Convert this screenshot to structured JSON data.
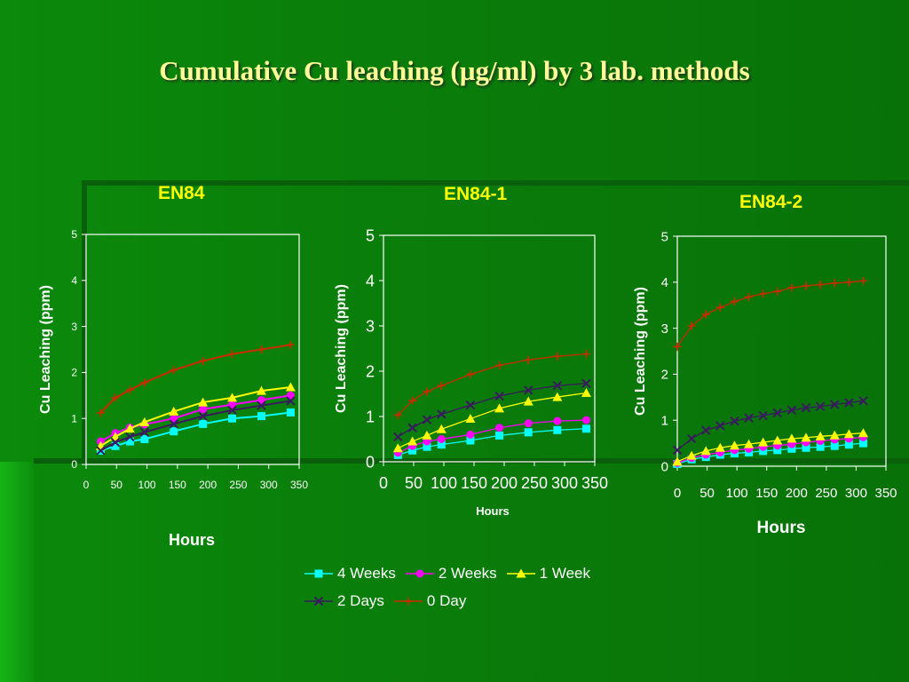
{
  "slide": {
    "title": "Cumulative Cu leaching (µg/ml) by 3 lab. methods"
  },
  "colors": {
    "4 Weeks": "#00ffff",
    "2 Weeks": "#ff00ff",
    "1 Week": "#ffff00",
    "2 Days": "#3a1a5e",
    "0 Day": "#cc2a00"
  },
  "chart_data": [
    {
      "type": "line",
      "title": "EN84",
      "xlabel": "Hours",
      "ylabel": "Cu Leaching (ppm)",
      "xlim": [
        0,
        350
      ],
      "ylim": [
        0,
        5
      ],
      "xticks": [
        0,
        50,
        100,
        150,
        200,
        250,
        300,
        350
      ],
      "yticks": [
        0,
        1,
        2,
        3,
        4,
        5
      ],
      "x": [
        24,
        48,
        72,
        96,
        144,
        192,
        240,
        288,
        336
      ],
      "series": [
        {
          "name": "4 Weeks",
          "marker": "square",
          "values": [
            0.3,
            0.4,
            0.5,
            0.55,
            0.72,
            0.88,
            1.0,
            1.05,
            1.13
          ]
        },
        {
          "name": "2 Weeks",
          "marker": "circle",
          "values": [
            0.5,
            0.68,
            0.8,
            0.87,
            1.0,
            1.2,
            1.3,
            1.4,
            1.5
          ]
        },
        {
          "name": "1 Week",
          "marker": "triangle",
          "values": [
            0.4,
            0.6,
            0.78,
            0.92,
            1.15,
            1.35,
            1.45,
            1.6,
            1.68
          ]
        },
        {
          "name": "2 Days",
          "marker": "x",
          "values": [
            0.3,
            0.48,
            0.6,
            0.7,
            0.88,
            1.05,
            1.18,
            1.28,
            1.38
          ]
        },
        {
          "name": "0 Day",
          "marker": "plus",
          "values": [
            1.12,
            1.45,
            1.62,
            1.78,
            2.05,
            2.25,
            2.4,
            2.5,
            2.6
          ]
        }
      ]
    },
    {
      "type": "line",
      "title": "EN84-1",
      "xlabel": "Hours",
      "ylabel": "Cu Leaching (ppm)",
      "xlim": [
        0,
        350
      ],
      "ylim": [
        0,
        5
      ],
      "xticks": [
        0,
        50,
        100,
        150,
        200,
        250,
        300,
        350
      ],
      "yticks": [
        0,
        1,
        2,
        3,
        4,
        5
      ],
      "x": [
        24,
        48,
        72,
        96,
        144,
        192,
        240,
        288,
        336
      ],
      "series": [
        {
          "name": "4 Weeks",
          "marker": "square",
          "values": [
            0.15,
            0.25,
            0.33,
            0.38,
            0.47,
            0.58,
            0.65,
            0.7,
            0.73
          ]
        },
        {
          "name": "2 Weeks",
          "marker": "circle",
          "values": [
            0.2,
            0.35,
            0.45,
            0.5,
            0.6,
            0.75,
            0.85,
            0.9,
            0.92
          ]
        },
        {
          "name": "1 Week",
          "marker": "triangle",
          "values": [
            0.3,
            0.45,
            0.58,
            0.72,
            0.95,
            1.18,
            1.33,
            1.43,
            1.52
          ]
        },
        {
          "name": "2 Days",
          "marker": "x",
          "values": [
            0.55,
            0.75,
            0.93,
            1.05,
            1.25,
            1.45,
            1.58,
            1.68,
            1.73
          ]
        },
        {
          "name": "0 Day",
          "marker": "plus",
          "values": [
            1.03,
            1.35,
            1.55,
            1.68,
            1.93,
            2.13,
            2.25,
            2.33,
            2.38
          ]
        }
      ]
    },
    {
      "type": "line",
      "title": "EN84-2",
      "xlabel": "Hours",
      "ylabel": "Cu Leaching (ppm)",
      "xlim": [
        0,
        350
      ],
      "ylim": [
        0,
        5
      ],
      "xticks": [
        0,
        50,
        100,
        150,
        200,
        250,
        300,
        350
      ],
      "yticks": [
        0,
        1,
        2,
        3,
        4,
        5
      ],
      "x": [
        0,
        24,
        48,
        72,
        96,
        120,
        144,
        168,
        192,
        216,
        240,
        264,
        288,
        312
      ],
      "series": [
        {
          "name": "4 Weeks",
          "marker": "square",
          "values": [
            0.05,
            0.15,
            0.2,
            0.25,
            0.28,
            0.3,
            0.33,
            0.35,
            0.38,
            0.4,
            0.42,
            0.44,
            0.47,
            0.5
          ]
        },
        {
          "name": "2 Weeks",
          "marker": "circle",
          "values": [
            0.07,
            0.18,
            0.25,
            0.3,
            0.35,
            0.38,
            0.42,
            0.45,
            0.48,
            0.52,
            0.55,
            0.58,
            0.6,
            0.63
          ]
        },
        {
          "name": "1 Week",
          "marker": "triangle",
          "values": [
            0.1,
            0.23,
            0.33,
            0.4,
            0.45,
            0.48,
            0.52,
            0.56,
            0.6,
            0.62,
            0.65,
            0.67,
            0.7,
            0.72
          ]
        },
        {
          "name": "2 Days",
          "marker": "x",
          "values": [
            0.35,
            0.6,
            0.78,
            0.88,
            0.98,
            1.05,
            1.1,
            1.16,
            1.22,
            1.27,
            1.3,
            1.34,
            1.38,
            1.42
          ]
        },
        {
          "name": "0 Day",
          "marker": "plus",
          "values": [
            2.6,
            3.05,
            3.3,
            3.45,
            3.58,
            3.68,
            3.75,
            3.8,
            3.88,
            3.92,
            3.95,
            3.98,
            4.0,
            4.03
          ]
        }
      ]
    }
  ],
  "legend": {
    "rows": [
      [
        "4 Weeks",
        "2 Weeks",
        "1 Week"
      ],
      [
        "2 Days",
        "0 Day"
      ]
    ]
  }
}
